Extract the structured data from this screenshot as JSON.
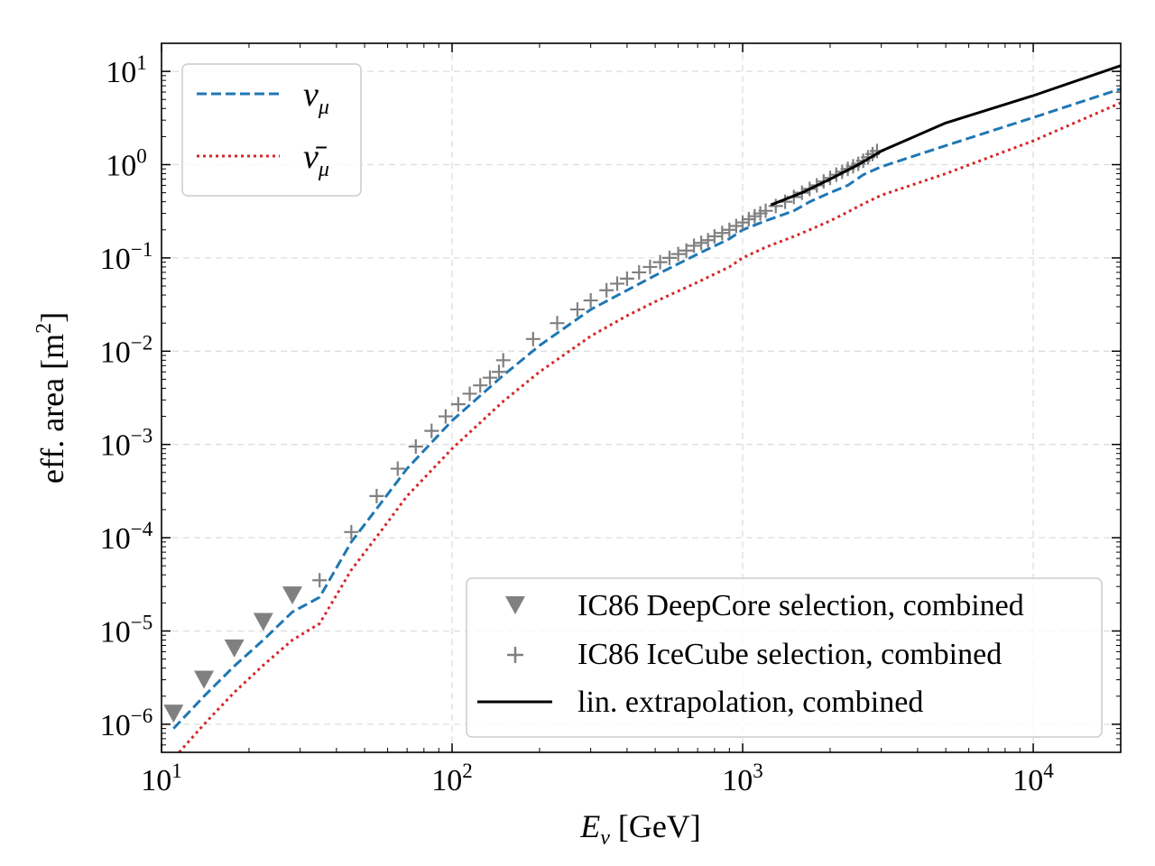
{
  "chart_data": {
    "type": "line",
    "xscale": "log",
    "yscale": "log",
    "xlim": [
      10,
      20000
    ],
    "ylim": [
      5e-07,
      20
    ],
    "grid": true,
    "xlabel": {
      "var": "E",
      "sub": "ν",
      "unit": " [GeV]"
    },
    "ylabel": {
      "text": "eff. area [m",
      "sup": "2",
      "end": "]"
    },
    "x_ticks": [
      {
        "value": 10,
        "base": "10",
        "exp": "1"
      },
      {
        "value": 100,
        "base": "10",
        "exp": "2"
      },
      {
        "value": 1000,
        "base": "10",
        "exp": "3"
      },
      {
        "value": 10000,
        "base": "10",
        "exp": "4"
      }
    ],
    "y_ticks": [
      {
        "value": 1e-06,
        "base": "10",
        "exp": "−6"
      },
      {
        "value": 1e-05,
        "base": "10",
        "exp": "−5"
      },
      {
        "value": 0.0001,
        "base": "10",
        "exp": "−4"
      },
      {
        "value": 0.001,
        "base": "10",
        "exp": "−3"
      },
      {
        "value": 0.01,
        "base": "10",
        "exp": "−2"
      },
      {
        "value": 0.1,
        "base": "10",
        "exp": "−1"
      },
      {
        "value": 1,
        "base": "10",
        "exp": "0"
      },
      {
        "value": 10,
        "base": "10",
        "exp": "1"
      }
    ],
    "series": [
      {
        "name": "nu_mu",
        "label": "ν",
        "label_sub": "μ",
        "style": "dashed",
        "color": "#1f77b4",
        "x": [
          11,
          14,
          17.8,
          22.4,
          28.2,
          35,
          45,
          56,
          70,
          100,
          150,
          200,
          300,
          400,
          500,
          700,
          900,
          1000,
          1200,
          1500,
          1700,
          2000,
          2300,
          2600,
          3000,
          5000,
          10000,
          20000
        ],
        "y": [
          9e-07,
          2e-06,
          4.2e-06,
          8e-06,
          1.6e-05,
          2.3e-05,
          9e-05,
          0.00022,
          0.00055,
          0.0018,
          0.0055,
          0.0115,
          0.028,
          0.045,
          0.065,
          0.11,
          0.16,
          0.2,
          0.25,
          0.32,
          0.4,
          0.5,
          0.6,
          0.78,
          0.95,
          1.6,
          3.2,
          6.5
        ]
      },
      {
        "name": "nubar_mu",
        "label": "ν̄",
        "label_sub": "μ",
        "style": "dotted",
        "color": "#d62728",
        "x": [
          11.5,
          14,
          17.8,
          22.4,
          28.2,
          35,
          45,
          56,
          70,
          100,
          150,
          200,
          300,
          400,
          500,
          700,
          900,
          1000,
          1200,
          1500,
          1700,
          2000,
          2300,
          2600,
          3000,
          5000,
          10000,
          20000
        ],
        "y": [
          5e-07,
          1e-06,
          2.2e-06,
          4.3e-06,
          8e-06,
          1.2e-05,
          4.5e-05,
          0.00011,
          0.00028,
          0.0009,
          0.0029,
          0.006,
          0.0145,
          0.024,
          0.034,
          0.055,
          0.08,
          0.1,
          0.13,
          0.17,
          0.2,
          0.25,
          0.31,
          0.38,
          0.47,
          0.8,
          1.8,
          4.6
        ]
      },
      {
        "name": "deepcore",
        "label": "IC86 DeepCore selection, combined",
        "style": "triangle-down",
        "color": "#808080",
        "x": [
          11,
          14,
          17.8,
          22.4,
          28.2
        ],
        "y": [
          1.3e-06,
          3e-06,
          6.5e-06,
          1.25e-05,
          2.4e-05
        ]
      },
      {
        "name": "icecube",
        "label": "IC86 IceCube selection, combined",
        "style": "plus",
        "color": "#808080",
        "x": [
          35,
          45,
          55,
          65,
          75,
          85,
          95,
          105,
          115,
          125,
          135,
          145,
          150,
          190,
          230,
          270,
          300,
          340,
          370,
          400,
          440,
          480,
          520,
          560,
          600,
          640,
          680,
          720,
          760,
          800,
          850,
          900,
          950,
          1000,
          1050,
          1100,
          1150,
          1200,
          1300,
          1400,
          1500,
          1600,
          1700,
          1800,
          1900,
          2000,
          2100,
          2200,
          2300,
          2400,
          2500,
          2600,
          2700,
          2800,
          2900
        ],
        "y": [
          3.5e-05,
          0.000115,
          0.00028,
          0.00055,
          0.00095,
          0.0014,
          0.002,
          0.0027,
          0.0035,
          0.0043,
          0.0052,
          0.006,
          0.008,
          0.0135,
          0.02,
          0.028,
          0.035,
          0.045,
          0.053,
          0.06,
          0.07,
          0.08,
          0.09,
          0.1,
          0.11,
          0.12,
          0.135,
          0.145,
          0.155,
          0.17,
          0.185,
          0.2,
          0.22,
          0.24,
          0.26,
          0.28,
          0.3,
          0.32,
          0.36,
          0.4,
          0.45,
          0.5,
          0.55,
          0.6,
          0.66,
          0.72,
          0.78,
          0.84,
          0.9,
          0.96,
          1.02,
          1.1,
          1.2,
          1.3,
          1.4
        ]
      },
      {
        "name": "extrapolation",
        "label": "lin. extrapolation, combined",
        "style": "solid",
        "color": "#000000",
        "x": [
          1250,
          1600,
          2000,
          2500,
          3000,
          5000,
          10000,
          20000
        ],
        "y": [
          0.37,
          0.5,
          0.7,
          1.0,
          1.4,
          2.8,
          5.5,
          11.5
        ]
      }
    ]
  }
}
